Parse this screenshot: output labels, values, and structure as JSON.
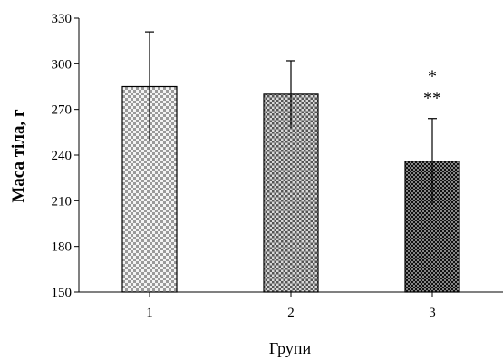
{
  "chart_data": {
    "type": "bar",
    "title": "",
    "xlabel": "Групи",
    "ylabel": "Маса тіла, г",
    "categories": [
      "1",
      "2",
      "3"
    ],
    "values": [
      285,
      280,
      236
    ],
    "errors": [
      36,
      22,
      28
    ],
    "ylim": [
      150,
      330
    ],
    "yticks": [
      "150",
      "180",
      "210",
      "240",
      "270",
      "300",
      "330"
    ],
    "grid": false,
    "legend": "none",
    "annotations": [
      {
        "category": "3",
        "lines": [
          "*",
          "**"
        ]
      }
    ],
    "bar_patterns": [
      "light-checker",
      "medium-checker",
      "dark-checker"
    ]
  }
}
